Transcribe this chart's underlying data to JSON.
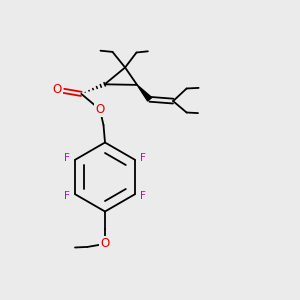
{
  "bg_color": "#ebebeb",
  "bc": "#000000",
  "oc": "#dd0000",
  "fc": "#cc00cc",
  "lw": 1.3,
  "fw": 3.0,
  "fh": 3.0,
  "dpi": 100,
  "xlim": [
    0,
    10
  ],
  "ylim": [
    0,
    10
  ]
}
